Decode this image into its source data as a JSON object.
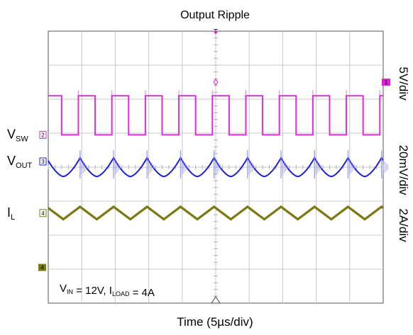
{
  "chart_data": {
    "type": "line",
    "title": "Output Ripple",
    "xlabel": "Time (5µs/div)",
    "x_divisions": 10,
    "y_divisions": 8,
    "x_unit_per_div": "5µs",
    "grid": true,
    "period_div": 1.0,
    "conditions": {
      "vin_sub": "IN",
      "vin_value": "= 12V,",
      "iload_sub": "LOAD",
      "iload_value": "= 4A"
    },
    "series": [
      {
        "name": "V",
        "subscript": "SW",
        "marker": "2",
        "scale": "5V/div",
        "color": "#e020d8",
        "ground_div": 3.05,
        "waveform": {
          "shape": "square",
          "high_div": 1.15,
          "low_div": 0.0,
          "duty": 0.5,
          "rise_at_div": [
            0.9,
            1.9,
            2.9,
            3.9,
            4.9,
            5.9,
            6.9,
            7.9,
            8.9,
            9.9
          ]
        }
      },
      {
        "name": "V",
        "subscript": "OUT",
        "marker": "3",
        "scale": "20mV/div",
        "color": "#1f1fd6",
        "ground_div": 4.0,
        "waveform": {
          "shape": "ripple",
          "peak_to_peak_div": 0.55,
          "peaks_at_div": [
            0.95,
            1.95,
            2.95,
            3.95,
            4.95,
            5.95,
            6.95,
            7.95,
            8.95,
            9.95
          ]
        }
      },
      {
        "name": "I",
        "subscript": "L",
        "marker": "4",
        "scale": "2A/div",
        "color": "#7a7a12",
        "ground_div": 5.35,
        "waveform": {
          "shape": "triangle",
          "peak_to_peak_div": 0.37,
          "peaks_at_div": [
            0.95,
            1.95,
            2.95,
            3.95,
            4.95,
            5.95,
            6.95,
            7.95,
            8.95,
            9.95
          ]
        }
      }
    ],
    "markers": {
      "trigger_top": "T",
      "trigger_level": "1",
      "ch4_ground": "4"
    }
  }
}
